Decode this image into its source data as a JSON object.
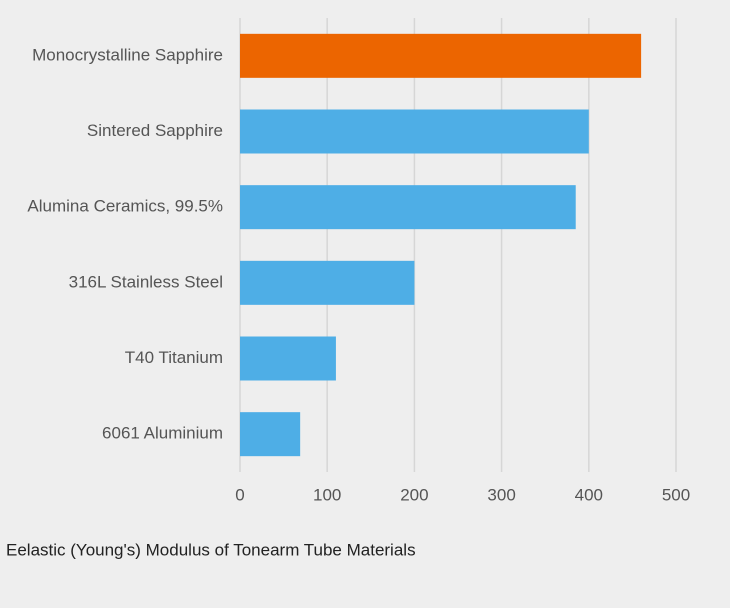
{
  "chart_data": {
    "type": "hbar",
    "title": "Eelastic (Young's) Modulus of Tonearm Tube Materials",
    "categories": [
      "Monocrystalline Sapphire",
      "Sintered Sapphire",
      "Alumina Ceramics, 99.5%",
      "316L Stainless Steel",
      "T40 Titanium",
      "6061 Aluminium"
    ],
    "values": [
      460,
      400,
      385,
      200,
      110,
      69
    ],
    "colors": [
      "#ec6500",
      "#4eaee6",
      "#4eaee6",
      "#4eaee6",
      "#4eaee6",
      "#4eaee6"
    ],
    "xlim": [
      0,
      500
    ],
    "xticks": [
      0,
      100,
      200,
      300,
      400,
      500
    ],
    "grid": true
  }
}
